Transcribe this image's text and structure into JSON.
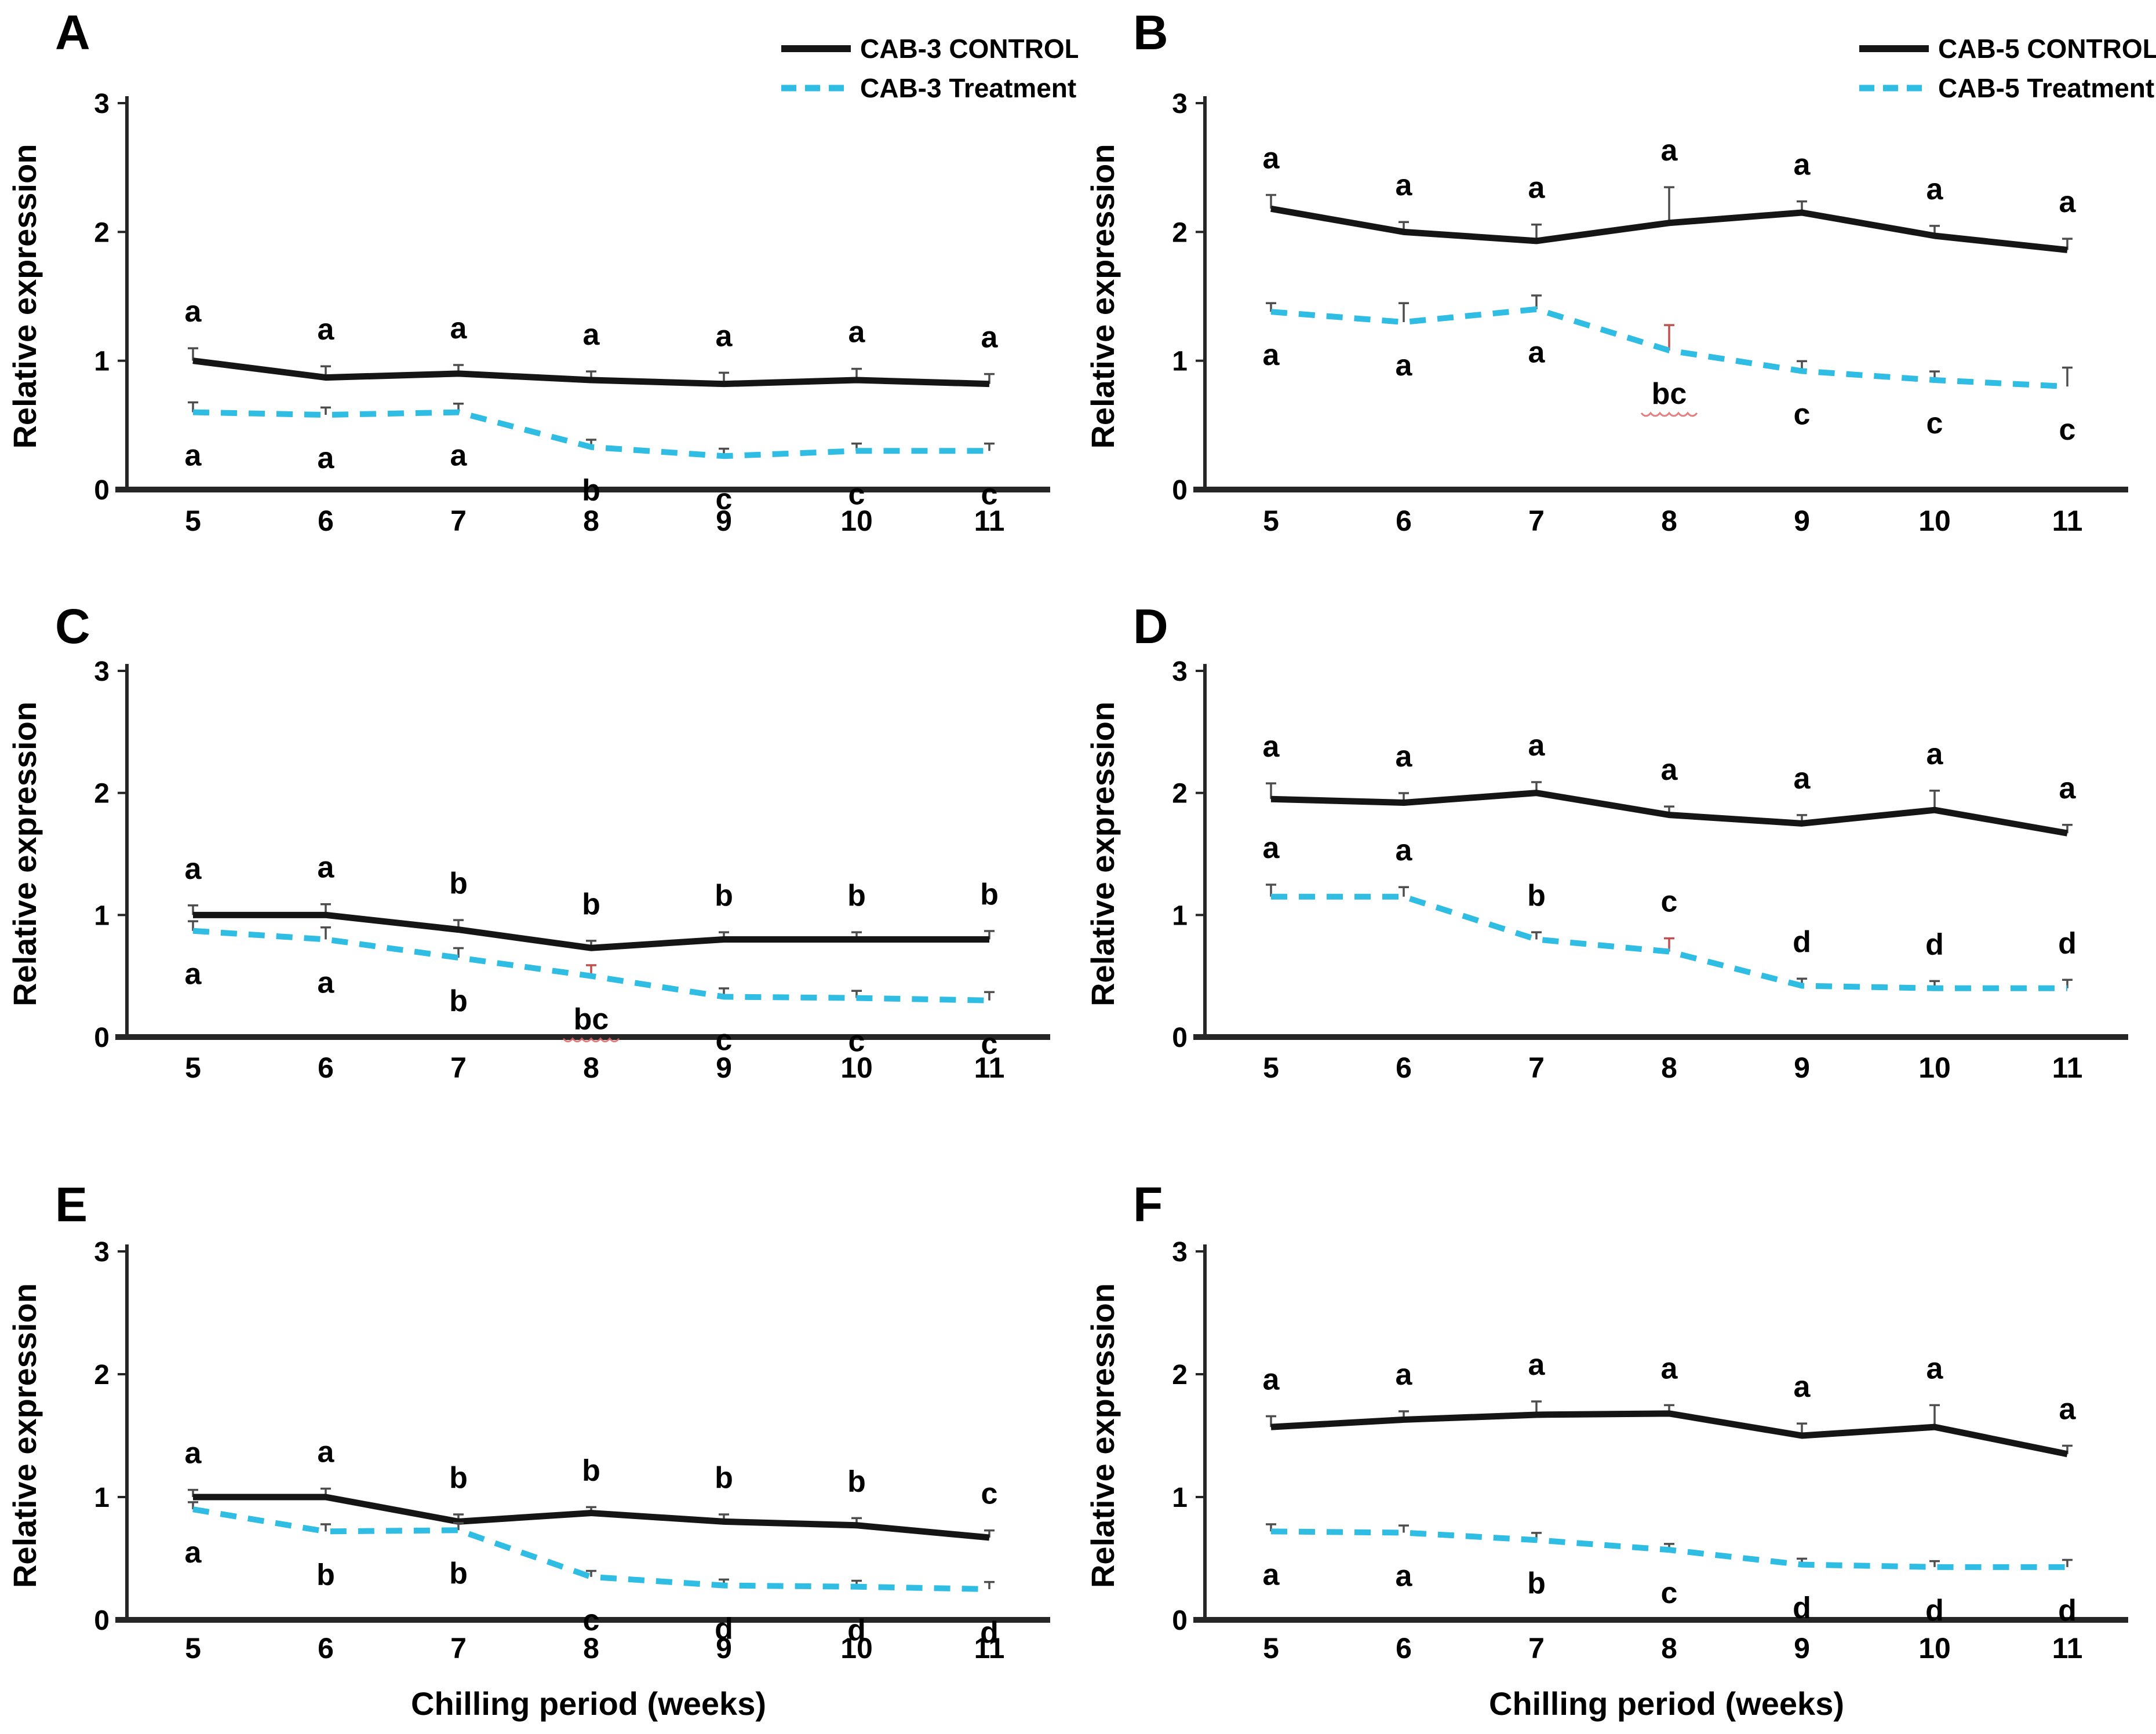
{
  "figure": {
    "ylabel": "Relative expression",
    "xlabel": "Chilling period (weeks)",
    "weeks": [
      5,
      6,
      7,
      8,
      9,
      10,
      11
    ],
    "ylim": [
      0,
      3
    ],
    "yticks": [
      0,
      1,
      2,
      3
    ],
    "colors": {
      "control_line": "#151515",
      "treatment_line": "#30bde4",
      "axis": "#262626",
      "error_bar": "#4d4d4d",
      "red_error_bar": "#c0504d",
      "wavy_underline": "#e06666",
      "text": "#000000",
      "background": "#ffffff"
    }
  },
  "chart_data": [
    {
      "type": "line",
      "panel": "A",
      "x": [
        5,
        6,
        7,
        8,
        9,
        10,
        11
      ],
      "xlabel": "",
      "ylabel": "Relative expression",
      "ylim": [
        0,
        3
      ],
      "yticks": [
        0,
        1,
        2,
        3
      ],
      "legend_visible": true,
      "legend_position": "top-right",
      "legend": [
        {
          "label": "CAB-3 CONTROL",
          "style": "solid-black"
        },
        {
          "label": "CAB-3 Treatment",
          "style": "dashed-cyan"
        }
      ],
      "series": [
        {
          "name": "CAB-3 CONTROL",
          "role": "control",
          "values": [
            1.0,
            0.87,
            0.9,
            0.85,
            0.82,
            0.85,
            0.82
          ],
          "err": [
            0.07,
            0.06,
            0.04,
            0.04,
            0.06,
            0.06,
            0.05
          ],
          "letters": [
            "a",
            "a",
            "a",
            "a",
            "a",
            "a",
            "a"
          ],
          "letters_position": "above",
          "wavy_weeks": [],
          "red_err_weeks": []
        },
        {
          "name": "CAB-3 Treatment",
          "role": "treatment",
          "values": [
            0.6,
            0.58,
            0.6,
            0.33,
            0.26,
            0.3,
            0.3
          ],
          "err": [
            0.05,
            0.03,
            0.04,
            0.03,
            0.03,
            0.03,
            0.03
          ],
          "letters": [
            "a",
            "a",
            "a",
            "b",
            "c",
            "c",
            "c"
          ],
          "letters_position": "below",
          "wavy_weeks": [],
          "red_err_weeks": []
        }
      ]
    },
    {
      "type": "line",
      "panel": "B",
      "x": [
        5,
        6,
        7,
        8,
        9,
        10,
        11
      ],
      "xlabel": "",
      "ylabel": "Relative expression",
      "ylim": [
        0,
        3
      ],
      "yticks": [
        0,
        1,
        2,
        3
      ],
      "legend_visible": true,
      "legend_position": "top-right",
      "legend": [
        {
          "label": "CAB-5 CONTROL",
          "style": "solid-black"
        },
        {
          "label": "CAB-5 Treatment",
          "style": "dashed-cyan"
        }
      ],
      "series": [
        {
          "name": "CAB-5 CONTROL",
          "role": "control",
          "values": [
            2.18,
            2.0,
            1.93,
            2.07,
            2.15,
            1.97,
            1.86
          ],
          "err": [
            0.08,
            0.05,
            0.1,
            0.25,
            0.06,
            0.05,
            0.06
          ],
          "letters": [
            "a",
            "a",
            "a",
            "a",
            "a",
            "a",
            "a"
          ],
          "letters_position": "above",
          "wavy_weeks": [],
          "red_err_weeks": []
        },
        {
          "name": "CAB-5 Treatment",
          "role": "treatment",
          "values": [
            1.38,
            1.3,
            1.4,
            1.08,
            0.92,
            0.85,
            0.8
          ],
          "err": [
            0.04,
            0.12,
            0.08,
            0.17,
            0.05,
            0.04,
            0.12
          ],
          "letters": [
            "a",
            "a",
            "a",
            "bc",
            "c",
            "c",
            "c"
          ],
          "letters_position": "below",
          "wavy_weeks": [
            8
          ],
          "red_err_weeks": [
            8
          ]
        }
      ]
    },
    {
      "type": "line",
      "panel": "C",
      "x": [
        5,
        6,
        7,
        8,
        9,
        10,
        11
      ],
      "xlabel": "",
      "ylabel": "Relative expression",
      "ylim": [
        0,
        3
      ],
      "yticks": [
        0,
        1,
        2,
        3
      ],
      "legend_visible": false,
      "legend": [],
      "series": [
        {
          "name": "CAB-3 CONTROL",
          "role": "control",
          "values": [
            1.0,
            1.0,
            0.88,
            0.73,
            0.8,
            0.8,
            0.8
          ],
          "err": [
            0.05,
            0.06,
            0.05,
            0.03,
            0.03,
            0.03,
            0.04
          ],
          "letters": [
            "a",
            "a",
            "b",
            "b",
            "b",
            "b",
            "b"
          ],
          "letters_position": "above",
          "wavy_weeks": [],
          "red_err_weeks": []
        },
        {
          "name": "CAB-3 Treatment",
          "role": "treatment",
          "values": [
            0.87,
            0.8,
            0.65,
            0.5,
            0.33,
            0.32,
            0.3
          ],
          "err": [
            0.05,
            0.07,
            0.05,
            0.06,
            0.04,
            0.03,
            0.04
          ],
          "letters": [
            "a",
            "a",
            "b",
            "bc",
            "c",
            "c",
            "c"
          ],
          "letters_position": "below",
          "wavy_weeks": [
            8
          ],
          "red_err_weeks": [
            8
          ]
        }
      ]
    },
    {
      "type": "line",
      "panel": "D",
      "x": [
        5,
        6,
        7,
        8,
        9,
        10,
        11
      ],
      "xlabel": "",
      "ylabel": "Relative expression",
      "ylim": [
        0,
        3
      ],
      "yticks": [
        0,
        1,
        2,
        3
      ],
      "legend_visible": false,
      "legend": [],
      "series": [
        {
          "name": "CAB-5 CONTROL",
          "role": "control",
          "values": [
            1.95,
            1.92,
            2.0,
            1.82,
            1.75,
            1.86,
            1.67
          ],
          "err": [
            0.1,
            0.05,
            0.06,
            0.04,
            0.04,
            0.13,
            0.04
          ],
          "letters": [
            "a",
            "a",
            "a",
            "a",
            "a",
            "a",
            "a"
          ],
          "letters_position": "above",
          "wavy_weeks": [],
          "red_err_weeks": []
        },
        {
          "name": "CAB-5 Treatment",
          "role": "treatment",
          "values": [
            1.15,
            1.15,
            0.8,
            0.7,
            0.42,
            0.4,
            0.4
          ],
          "err": [
            0.07,
            0.05,
            0.03,
            0.08,
            0.03,
            0.03,
            0.04
          ],
          "letters": [
            "a",
            "a",
            "b",
            "c",
            "d",
            "d",
            "d"
          ],
          "letters_position": "above",
          "wavy_weeks": [],
          "red_err_weeks": [
            8
          ]
        }
      ]
    },
    {
      "type": "line",
      "panel": "E",
      "x": [
        5,
        6,
        7,
        8,
        9,
        10,
        11
      ],
      "xlabel": "Chilling period (weeks)",
      "ylabel": "Relative expression",
      "ylim": [
        0,
        3
      ],
      "yticks": [
        0,
        1,
        2,
        3
      ],
      "legend_visible": false,
      "legend": [],
      "series": [
        {
          "name": "CAB-3 CONTROL",
          "role": "control",
          "values": [
            1.0,
            1.0,
            0.8,
            0.87,
            0.8,
            0.77,
            0.67
          ],
          "err": [
            0.03,
            0.04,
            0.03,
            0.02,
            0.03,
            0.03,
            0.03
          ],
          "letters": [
            "a",
            "a",
            "b",
            "b",
            "b",
            "b",
            "c"
          ],
          "letters_position": "above",
          "wavy_weeks": [],
          "red_err_weeks": []
        },
        {
          "name": "CAB-3 Treatment",
          "role": "treatment",
          "values": [
            0.9,
            0.72,
            0.73,
            0.35,
            0.28,
            0.27,
            0.25
          ],
          "err": [
            0.03,
            0.03,
            0.03,
            0.02,
            0.02,
            0.02,
            0.03
          ],
          "letters": [
            "a",
            "b",
            "b",
            "c",
            "d",
            "d",
            "d"
          ],
          "letters_position": "below",
          "wavy_weeks": [],
          "red_err_weeks": []
        }
      ]
    },
    {
      "type": "line",
      "panel": "F",
      "x": [
        5,
        6,
        7,
        8,
        9,
        10,
        11
      ],
      "xlabel": "Chilling period (weeks)",
      "ylabel": "Relative expression",
      "ylim": [
        0,
        3
      ],
      "yticks": [
        0,
        1,
        2,
        3
      ],
      "legend_visible": false,
      "legend": [],
      "series": [
        {
          "name": "CAB-5 CONTROL",
          "role": "control",
          "values": [
            1.57,
            1.63,
            1.67,
            1.68,
            1.5,
            1.57,
            1.35
          ],
          "err": [
            0.06,
            0.04,
            0.08,
            0.04,
            0.07,
            0.15,
            0.04
          ],
          "letters": [
            "a",
            "a",
            "a",
            "a",
            "a",
            "a",
            "a"
          ],
          "letters_position": "above",
          "wavy_weeks": [],
          "red_err_weeks": []
        },
        {
          "name": "CAB-5 Treatment",
          "role": "treatment",
          "values": [
            0.72,
            0.71,
            0.65,
            0.57,
            0.45,
            0.43,
            0.43
          ],
          "err": [
            0.03,
            0.03,
            0.03,
            0.02,
            0.02,
            0.02,
            0.03
          ],
          "letters": [
            "a",
            "a",
            "b",
            "c",
            "d",
            "d",
            "d"
          ],
          "letters_position": "below",
          "wavy_weeks": [],
          "red_err_weeks": []
        }
      ]
    }
  ]
}
